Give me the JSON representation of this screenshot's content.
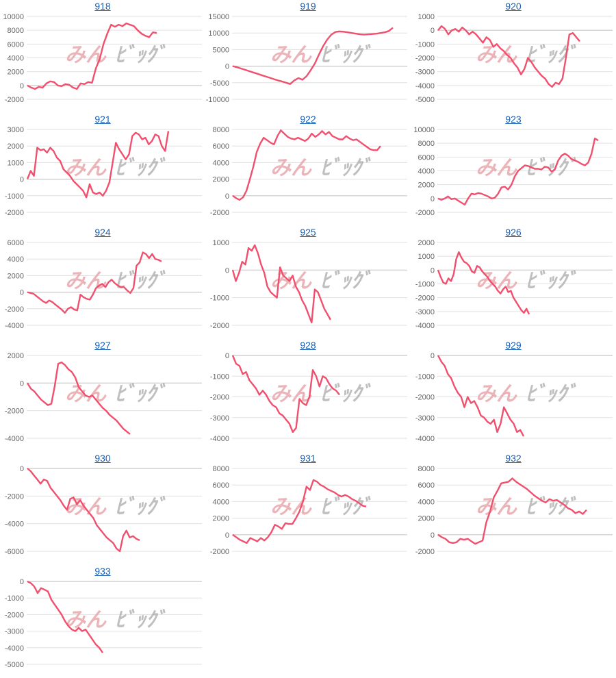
{
  "watermark": {
    "left": "みん",
    "right": "ﾋﾞｯｸﾞ"
  },
  "colors": {
    "line": "#f0506e",
    "grid": "#e0e0e0",
    "axis": "#c8c8c8",
    "title": "#1a5fb4",
    "tick": "#666666"
  },
  "chart_data": [
    {
      "type": "line",
      "title": "918",
      "yticks": [
        -2000,
        0,
        2000,
        4000,
        6000,
        8000,
        10000
      ],
      "series": [
        {
          "values": [
            0,
            -300,
            -500,
            -200,
            -300,
            300,
            600,
            500,
            0,
            -100,
            200,
            100,
            -300,
            -500,
            300,
            200,
            500,
            400,
            2500,
            3800,
            6000,
            7500,
            8800,
            8500,
            8800,
            8600,
            9000,
            8800,
            8600,
            8000,
            7500,
            7200,
            7000,
            7700,
            7600
          ]
        }
      ]
    },
    {
      "type": "line",
      "title": "919",
      "yticks": [
        -10000,
        -5000,
        0,
        5000,
        10000,
        15000
      ],
      "series": [
        {
          "values": [
            0,
            -300,
            -700,
            -1100,
            -1500,
            -1900,
            -2300,
            -2700,
            -3100,
            -3500,
            -3900,
            -4300,
            -4600,
            -5000,
            -5400,
            -4300,
            -3600,
            -4100,
            -3000,
            -1200,
            800,
            3500,
            6000,
            8000,
            9500,
            10300,
            10500,
            10400,
            10200,
            10000,
            9800,
            9600,
            9500,
            9600,
            9700,
            9800,
            10000,
            10200,
            10600,
            11600
          ]
        }
      ]
    },
    {
      "type": "line",
      "title": "920",
      "yticks": [
        -5000,
        -4000,
        -3000,
        -2000,
        -1000,
        0,
        1000
      ],
      "series": [
        {
          "values": [
            0,
            300,
            100,
            -300,
            0,
            100,
            -100,
            200,
            0,
            -300,
            -100,
            -300,
            -600,
            -900,
            -500,
            -700,
            -1200,
            -1000,
            -1300,
            -1500,
            -1800,
            -2000,
            -2400,
            -2700,
            -3200,
            -2800,
            -2000,
            -2300,
            -2700,
            -3000,
            -3300,
            -3500,
            -3900,
            -4100,
            -3800,
            -3900,
            -3500,
            -2000,
            -300,
            -200,
            -500,
            -800
          ]
        }
      ]
    },
    {
      "type": "line",
      "title": "921",
      "yticks": [
        -2000,
        -1000,
        0,
        1000,
        2000,
        3000
      ],
      "series": [
        {
          "values": [
            0,
            500,
            200,
            1900,
            1750,
            1800,
            1600,
            1900,
            1700,
            1300,
            1100,
            600,
            400,
            200,
            -100,
            -300,
            -500,
            -700,
            -1100,
            -300,
            -800,
            -900,
            -800,
            -1000,
            -700,
            -200,
            1000,
            2200,
            1800,
            1500,
            1200,
            1500,
            2600,
            2800,
            2700,
            2400,
            2500,
            2100,
            2300,
            2700,
            2600,
            2000,
            1700,
            2900
          ]
        }
      ]
    },
    {
      "type": "line",
      "title": "922",
      "yticks": [
        -2000,
        0,
        2000,
        4000,
        6000,
        8000
      ],
      "series": [
        {
          "values": [
            0,
            -300,
            -500,
            -200,
            600,
            2000,
            3500,
            5300,
            6300,
            7000,
            6700,
            6400,
            6200,
            7200,
            7900,
            7500,
            7100,
            6900,
            6800,
            7000,
            6800,
            6600,
            6900,
            7500,
            7100,
            7400,
            7800,
            7400,
            7700,
            7200,
            7000,
            6800,
            6800,
            7200,
            6900,
            6700,
            6800,
            6500,
            6200,
            5900,
            5600,
            5500,
            5500,
            6000
          ]
        }
      ]
    },
    {
      "type": "line",
      "title": "923",
      "yticks": [
        -2000,
        0,
        2000,
        4000,
        6000,
        8000,
        10000
      ],
      "series": [
        {
          "values": [
            0,
            -200,
            0,
            300,
            -100,
            0,
            -300,
            -600,
            -900,
            0,
            700,
            600,
            800,
            700,
            500,
            300,
            0,
            100,
            700,
            1600,
            1700,
            1300,
            2000,
            3200,
            4000,
            4400,
            4800,
            4700,
            4500,
            4300,
            4300,
            4200,
            4600,
            4500,
            3900,
            4200,
            5500,
            6200,
            6500,
            6200,
            5700,
            5500,
            5300,
            5000,
            4800,
            5200,
            6500,
            8700,
            8400
          ]
        }
      ]
    },
    {
      "type": "line",
      "title": "924",
      "yticks": [
        -4000,
        -2000,
        0,
        2000,
        4000,
        6000
      ],
      "series": [
        {
          "values": [
            0,
            -100,
            -200,
            -500,
            -800,
            -1100,
            -1300,
            -1000,
            -1200,
            -1500,
            -1800,
            -2100,
            -2500,
            -2000,
            -1800,
            -2100,
            -2200,
            -300,
            -600,
            -800,
            -900,
            -300,
            500,
            800,
            1000,
            600,
            1200,
            1500,
            1100,
            800,
            600,
            600,
            200,
            -100,
            500,
            3200,
            3600,
            4800,
            4600,
            4100,
            4600,
            4000,
            3900,
            3700
          ]
        }
      ]
    },
    {
      "type": "line",
      "title": "925",
      "yticks": [
        -2000,
        -1000,
        0,
        1000
      ],
      "series": [
        {
          "values": [
            0,
            -400,
            -100,
            300,
            200,
            800,
            700,
            900,
            600,
            200,
            -100,
            -600,
            -800,
            -900,
            -1000,
            100,
            -200,
            -300,
            -400,
            -200,
            -600,
            -800,
            -1100,
            -1300,
            -1600,
            -1900,
            -700,
            -800,
            -1100,
            -1400,
            -1600,
            -1800
          ]
        }
      ]
    },
    {
      "type": "line",
      "title": "926",
      "yticks": [
        -4000,
        -3000,
        -2000,
        -1000,
        0,
        1000,
        2000
      ],
      "series": [
        {
          "values": [
            0,
            -500,
            -900,
            -1000,
            -600,
            -800,
            -300,
            800,
            1300,
            900,
            600,
            500,
            300,
            -100,
            -200,
            300,
            200,
            -100,
            -300,
            -500,
            -800,
            -1000,
            -1200,
            -1500,
            -1700,
            -1400,
            -1200,
            -1600,
            -1500,
            -2000,
            -2300,
            -2600,
            -2900,
            -3100,
            -2800,
            -3200
          ]
        }
      ]
    },
    {
      "type": "line",
      "title": "927",
      "yticks": [
        -4000,
        -2000,
        0,
        2000
      ],
      "series": [
        {
          "values": [
            0,
            -400,
            -600,
            -900,
            -1200,
            -1400,
            -1600,
            -1500,
            -200,
            1400,
            1500,
            1300,
            1000,
            800,
            400,
            -300,
            -600,
            -900,
            -1000,
            -900,
            -1200,
            -1500,
            -1800,
            -2000,
            -2300,
            -2500,
            -2700,
            -3000,
            -3300,
            -3500,
            -3700
          ]
        }
      ]
    },
    {
      "type": "line",
      "title": "928",
      "yticks": [
        -4000,
        -3000,
        -2000,
        -1000,
        0
      ],
      "series": [
        {
          "values": [
            0,
            -400,
            -500,
            -900,
            -800,
            -1200,
            -1400,
            -1600,
            -1900,
            -1700,
            -1900,
            -2200,
            -2400,
            -2500,
            -2800,
            -2900,
            -3100,
            -3300,
            -3700,
            -3500,
            -2100,
            -2300,
            -2400,
            -2000,
            -700,
            -1000,
            -1500,
            -1000,
            -1100,
            -1400,
            -1600,
            -1700,
            -1900
          ]
        }
      ]
    },
    {
      "type": "line",
      "title": "929",
      "yticks": [
        -4000,
        -3000,
        -2000,
        -1000,
        0
      ],
      "series": [
        {
          "values": [
            0,
            -300,
            -500,
            -900,
            -1100,
            -1500,
            -1800,
            -2000,
            -2500,
            -2000,
            -2300,
            -2200,
            -2500,
            -2900,
            -3000,
            -3200,
            -3300,
            -3100,
            -3700,
            -3300,
            -2500,
            -2800,
            -3100,
            -3300,
            -3700,
            -3600,
            -3900
          ]
        }
      ]
    },
    {
      "type": "line",
      "title": "930",
      "yticks": [
        -6000,
        -4000,
        -2000,
        0
      ],
      "series": [
        {
          "values": [
            0,
            -200,
            -500,
            -800,
            -1100,
            -800,
            -900,
            -1400,
            -1700,
            -2000,
            -2300,
            -2700,
            -3000,
            -2200,
            -2100,
            -2600,
            -2300,
            -2700,
            -3000,
            -3300,
            -3600,
            -4100,
            -4400,
            -4700,
            -5000,
            -5200,
            -5400,
            -5800,
            -6000,
            -4900,
            -4500,
            -5000,
            -4900,
            -5100,
            -5200
          ]
        }
      ]
    },
    {
      "type": "line",
      "title": "931",
      "yticks": [
        -2000,
        0,
        2000,
        4000,
        6000,
        8000
      ],
      "series": [
        {
          "values": [
            0,
            -300,
            -600,
            -800,
            -1000,
            -400,
            -600,
            -800,
            -400,
            -700,
            -300,
            300,
            1200,
            1000,
            700,
            1400,
            1300,
            1300,
            2000,
            2800,
            4000,
            5800,
            5400,
            6600,
            6400,
            6000,
            5800,
            5500,
            5300,
            5100,
            4800,
            4600,
            4800,
            4600,
            4300,
            4100,
            3800,
            3500,
            3400
          ]
        }
      ]
    },
    {
      "type": "line",
      "title": "932",
      "yticks": [
        -2000,
        0,
        2000,
        4000,
        6000,
        8000
      ],
      "series": [
        {
          "values": [
            0,
            -300,
            -500,
            -900,
            -1000,
            -900,
            -500,
            -600,
            -500,
            -800,
            -1100,
            -900,
            -700,
            1500,
            2800,
            4500,
            5300,
            6200,
            6300,
            6400,
            6800,
            6400,
            6100,
            5800,
            5500,
            5100,
            4700,
            4400,
            4100,
            3900,
            4300,
            4100,
            4200,
            3900,
            3600,
            3200,
            3000,
            2600,
            2800,
            2500,
            3000
          ]
        }
      ]
    },
    {
      "type": "line",
      "title": "933",
      "yticks": [
        -5000,
        -4000,
        -3000,
        -2000,
        -1000,
        0
      ],
      "series": [
        {
          "values": [
            0,
            -100,
            -300,
            -700,
            -400,
            -500,
            -600,
            -1100,
            -1400,
            -1700,
            -2000,
            -2400,
            -2700,
            -2900,
            -3000,
            -2800,
            -3000,
            -2900,
            -3200,
            -3500,
            -3800,
            -4000,
            -4300
          ]
        }
      ]
    }
  ]
}
